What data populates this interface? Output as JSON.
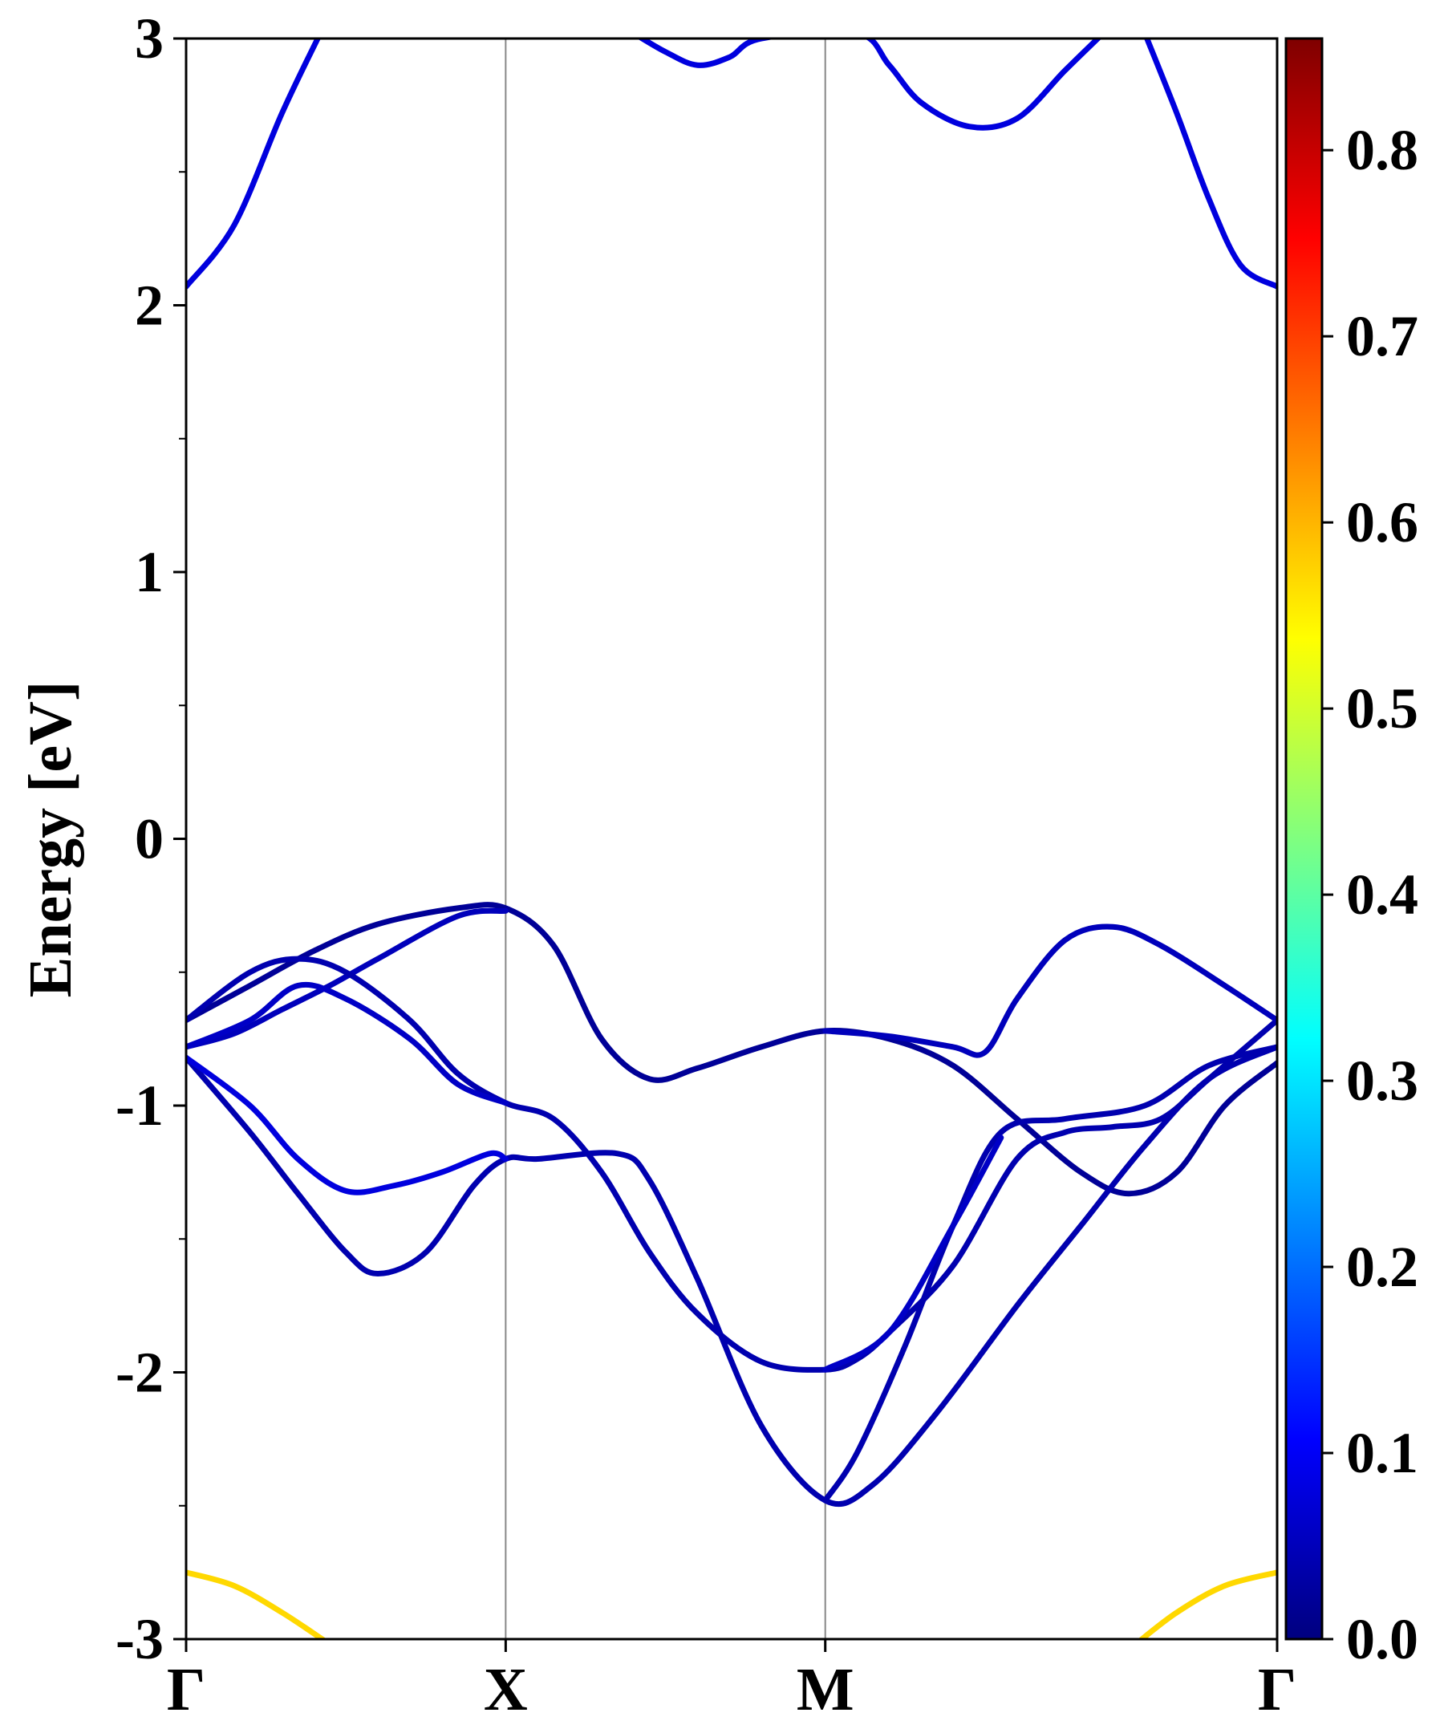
{
  "chart_data": {
    "type": "line",
    "subtype": "band-structure",
    "ylabel": "Energy [eV]",
    "ylim": [
      -3,
      3
    ],
    "yticks": [
      3,
      2,
      1,
      0,
      -1,
      -2,
      -3
    ],
    "yticks_minor": [
      2.5,
      1.5,
      0.5,
      -0.5,
      -1.5,
      -2.5
    ],
    "kpath": {
      "labels": [
        "Γ",
        "X",
        "M",
        "Γ"
      ],
      "positions": [
        0,
        1,
        2,
        3.414
      ]
    },
    "xlim": [
      0,
      3.414
    ],
    "grid": "vertical lines at high-symmetry points",
    "colorbar": {
      "colormap": "jet",
      "vmin": 0.0,
      "vmax": 0.86,
      "ticks": [
        "0.0",
        "0.1",
        "0.2",
        "0.3",
        "0.4",
        "0.5",
        "0.6",
        "0.7",
        "0.8"
      ],
      "tick_values": [
        0.0,
        0.1,
        0.2,
        0.3,
        0.4,
        0.5,
        0.6,
        0.7,
        0.8
      ]
    },
    "bands": [
      {
        "name": "",
        "weight": 0.08,
        "points": [
          [
            0,
            2.07
          ],
          [
            0.15,
            2.3
          ],
          [
            0.3,
            2.72
          ],
          [
            0.42,
            3.02
          ]
        ]
      },
      {
        "name": "",
        "weight": 0.08,
        "points": [
          [
            1.4,
            3.02
          ],
          [
            1.5,
            2.95
          ],
          [
            1.6,
            2.9
          ],
          [
            1.7,
            2.93
          ],
          [
            1.8,
            3.0
          ],
          [
            2.1,
            3.02
          ],
          [
            2.2,
            2.9
          ],
          [
            2.3,
            2.76
          ],
          [
            2.45,
            2.67
          ],
          [
            2.6,
            2.7
          ],
          [
            2.75,
            2.88
          ],
          [
            2.87,
            3.02
          ]
        ]
      },
      {
        "name": "",
        "weight": 0.08,
        "points": [
          [
            3.0,
            3.02
          ],
          [
            3.1,
            2.72
          ],
          [
            3.2,
            2.4
          ],
          [
            3.3,
            2.15
          ],
          [
            3.414,
            2.07
          ]
        ]
      },
      {
        "name": "",
        "weight": 0.02,
        "points": [
          [
            0,
            -0.68
          ],
          [
            0.2,
            -0.55
          ],
          [
            0.4,
            -0.42
          ],
          [
            0.6,
            -0.32
          ],
          [
            0.85,
            -0.26
          ],
          [
            1.0,
            -0.26
          ],
          [
            1.15,
            -0.4
          ],
          [
            1.3,
            -0.75
          ],
          [
            1.45,
            -0.9
          ],
          [
            1.6,
            -0.86
          ],
          [
            1.8,
            -0.78
          ],
          [
            2.0,
            -0.72
          ],
          [
            2.2,
            -0.75
          ],
          [
            2.4,
            -0.85
          ],
          [
            2.6,
            -1.05
          ],
          [
            2.8,
            -1.25
          ],
          [
            2.95,
            -1.33
          ],
          [
            3.1,
            -1.25
          ],
          [
            3.25,
            -1.0
          ],
          [
            3.414,
            -0.84
          ]
        ]
      },
      {
        "name": "",
        "weight": 0.05,
        "points": [
          [
            0,
            -0.78
          ],
          [
            0.15,
            -0.73
          ],
          [
            0.3,
            -0.64
          ],
          [
            0.45,
            -0.55
          ],
          [
            0.6,
            -0.45
          ],
          [
            0.85,
            -0.29
          ],
          [
            1.0,
            -0.27
          ]
        ]
      },
      {
        "name": "",
        "weight": 0.04,
        "points": [
          [
            0,
            -0.68
          ],
          [
            0.2,
            -0.5
          ],
          [
            0.35,
            -0.45
          ],
          [
            0.5,
            -0.5
          ],
          [
            0.7,
            -0.68
          ],
          [
            0.85,
            -0.88
          ],
          [
            1.0,
            -0.99
          ],
          [
            1.15,
            -1.05
          ],
          [
            1.3,
            -1.25
          ],
          [
            1.45,
            -1.55
          ],
          [
            1.6,
            -1.78
          ],
          [
            1.8,
            -1.96
          ],
          [
            2.0,
            -1.99
          ],
          [
            2.1,
            -1.95
          ],
          [
            2.2,
            -1.85
          ],
          [
            2.4,
            -1.6
          ],
          [
            2.6,
            -1.2
          ],
          [
            2.75,
            -1.1
          ],
          [
            2.9,
            -1.08
          ],
          [
            3.05,
            -1.05
          ],
          [
            3.2,
            -0.9
          ],
          [
            3.414,
            -0.68
          ]
        ]
      },
      {
        "name": "",
        "weight": 0.06,
        "points": [
          [
            0,
            -0.78
          ],
          [
            0.2,
            -0.68
          ],
          [
            0.35,
            -0.55
          ],
          [
            0.5,
            -0.6
          ],
          [
            0.7,
            -0.75
          ],
          [
            0.85,
            -0.92
          ],
          [
            1.0,
            -0.99
          ]
        ]
      },
      {
        "name": "",
        "weight": 0.05,
        "points": [
          [
            2.0,
            -0.72
          ],
          [
            2.2,
            -0.74
          ],
          [
            2.4,
            -0.78
          ],
          [
            2.5,
            -0.8
          ],
          [
            2.6,
            -0.6
          ],
          [
            2.75,
            -0.38
          ],
          [
            2.9,
            -0.33
          ],
          [
            3.05,
            -0.4
          ],
          [
            3.25,
            -0.55
          ],
          [
            3.414,
            -0.68
          ]
        ]
      },
      {
        "name": "",
        "weight": 0.04,
        "points": [
          [
            0,
            -0.82
          ],
          [
            0.2,
            -1.1
          ],
          [
            0.35,
            -1.33
          ],
          [
            0.5,
            -1.55
          ],
          [
            0.6,
            -1.63
          ],
          [
            0.75,
            -1.55
          ],
          [
            0.9,
            -1.3
          ],
          [
            1.0,
            -1.2
          ],
          [
            1.1,
            -1.2
          ],
          [
            1.35,
            -1.18
          ],
          [
            1.45,
            -1.28
          ],
          [
            1.6,
            -1.65
          ],
          [
            1.8,
            -2.2
          ],
          [
            2.0,
            -2.48
          ],
          [
            2.15,
            -2.42
          ],
          [
            2.35,
            -2.15
          ],
          [
            2.6,
            -1.75
          ],
          [
            2.8,
            -1.45
          ],
          [
            3.0,
            -1.15
          ],
          [
            3.2,
            -0.9
          ],
          [
            3.414,
            -0.78
          ]
        ]
      },
      {
        "name": "",
        "weight": 0.08,
        "points": [
          [
            0,
            -0.82
          ],
          [
            0.2,
            -1.0
          ],
          [
            0.35,
            -1.2
          ],
          [
            0.5,
            -1.32
          ],
          [
            0.65,
            -1.3
          ],
          [
            0.8,
            -1.25
          ],
          [
            0.95,
            -1.18
          ],
          [
            1.0,
            -1.2
          ]
        ]
      },
      {
        "name": "",
        "weight": 0.04,
        "points": [
          [
            2.0,
            -2.48
          ],
          [
            2.1,
            -2.3
          ],
          [
            2.25,
            -1.9
          ],
          [
            2.4,
            -1.45
          ],
          [
            2.55,
            -1.1
          ],
          [
            2.75,
            -1.05
          ],
          [
            3.0,
            -1.0
          ],
          [
            3.2,
            -0.85
          ],
          [
            3.414,
            -0.78
          ]
        ]
      },
      {
        "name": "",
        "weight": 0.06,
        "points": [
          [
            2.0,
            -1.99
          ],
          [
            2.2,
            -1.85
          ],
          [
            2.4,
            -1.45
          ],
          [
            2.55,
            -1.12
          ]
        ]
      },
      {
        "name": "",
        "weight": 0.57,
        "points": [
          [
            0,
            -2.75
          ],
          [
            0.15,
            -2.8
          ],
          [
            0.3,
            -2.9
          ],
          [
            0.45,
            -3.02
          ]
        ]
      },
      {
        "name": "",
        "weight": 0.57,
        "points": [
          [
            2.97,
            -3.02
          ],
          [
            3.1,
            -2.9
          ],
          [
            3.25,
            -2.8
          ],
          [
            3.414,
            -2.75
          ]
        ]
      }
    ]
  }
}
